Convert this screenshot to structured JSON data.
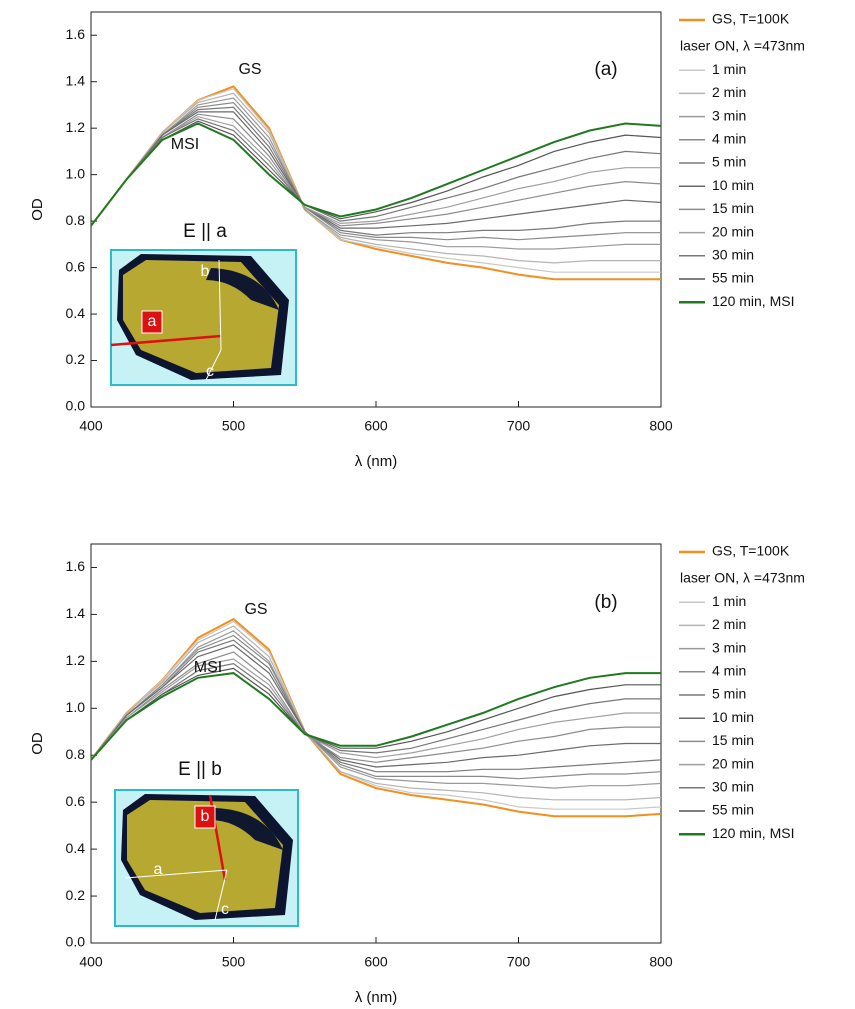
{
  "chart_data": [
    {
      "type": "line",
      "panel_label": "(a)",
      "xlabel": "λ (nm)",
      "ylabel": "OD",
      "legend_note": "laser ON, λ =473nm",
      "annotations": {
        "gs": "GS",
        "msi": "MSI"
      },
      "inset": {
        "title": "E || a",
        "labels": [
          "a",
          "b",
          "c"
        ]
      },
      "xlim": [
        400,
        800
      ],
      "ylim": [
        0,
        1.7
      ],
      "xticks": [
        400,
        500,
        600,
        700,
        800
      ],
      "yticks": [
        {
          "value": 0,
          "label": "0.0"
        },
        0.2,
        0.4,
        0.6,
        0.8,
        {
          "value": 1,
          "label": "1.0"
        },
        1.2,
        1.4,
        1.6
      ],
      "x": [
        400,
        425,
        450,
        475,
        500,
        525,
        550,
        575,
        600,
        625,
        650,
        675,
        700,
        725,
        750,
        775,
        800
      ],
      "series": [
        {
          "name": "GS, T=100K",
          "color": "#f0901e",
          "values": [
            0.78,
            0.98,
            1.18,
            1.32,
            1.38,
            1.2,
            0.85,
            0.72,
            0.68,
            0.65,
            0.62,
            0.6,
            0.57,
            0.55,
            0.55,
            0.55,
            0.55
          ]
        },
        {
          "name": "1 min",
          "color": "#c8c8c8",
          "values": [
            0.78,
            0.98,
            1.18,
            1.32,
            1.37,
            1.19,
            0.85,
            0.72,
            0.69,
            0.66,
            0.64,
            0.62,
            0.6,
            0.58,
            0.58,
            0.58,
            0.58
          ]
        },
        {
          "name": "2 min",
          "color": "#b4b4b4",
          "values": [
            0.78,
            0.98,
            1.18,
            1.31,
            1.35,
            1.18,
            0.85,
            0.73,
            0.7,
            0.68,
            0.66,
            0.65,
            0.63,
            0.62,
            0.63,
            0.63,
            0.63
          ]
        },
        {
          "name": "3 min",
          "color": "#9a9a9a",
          "values": [
            0.78,
            0.98,
            1.17,
            1.3,
            1.33,
            1.16,
            0.85,
            0.74,
            0.72,
            0.71,
            0.69,
            0.69,
            0.68,
            0.68,
            0.69,
            0.7,
            0.7
          ]
        },
        {
          "name": "4 min",
          "color": "#8a8a8a",
          "values": [
            0.78,
            0.98,
            1.17,
            1.29,
            1.31,
            1.14,
            0.86,
            0.75,
            0.73,
            0.73,
            0.72,
            0.73,
            0.72,
            0.73,
            0.74,
            0.75,
            0.75
          ]
        },
        {
          "name": "5 min",
          "color": "#7a7a7a",
          "values": [
            0.78,
            0.98,
            1.17,
            1.28,
            1.29,
            1.12,
            0.86,
            0.76,
            0.74,
            0.75,
            0.75,
            0.76,
            0.76,
            0.77,
            0.79,
            0.8,
            0.8
          ]
        },
        {
          "name": "10 min",
          "color": "#6a6a6a",
          "values": [
            0.78,
            0.98,
            1.17,
            1.27,
            1.27,
            1.1,
            0.86,
            0.77,
            0.77,
            0.78,
            0.79,
            0.81,
            0.83,
            0.85,
            0.87,
            0.89,
            0.88
          ]
        },
        {
          "name": "15 min",
          "color": "#8c8c8c",
          "values": [
            0.78,
            0.98,
            1.16,
            1.26,
            1.24,
            1.08,
            0.86,
            0.78,
            0.79,
            0.81,
            0.83,
            0.86,
            0.89,
            0.92,
            0.95,
            0.97,
            0.96
          ]
        },
        {
          "name": "20 min",
          "color": "#a0a0a0",
          "values": [
            0.78,
            0.98,
            1.16,
            1.25,
            1.21,
            1.06,
            0.86,
            0.79,
            0.8,
            0.83,
            0.86,
            0.9,
            0.94,
            0.97,
            1.01,
            1.03,
            1.03
          ]
        },
        {
          "name": "30 min",
          "color": "#777777",
          "values": [
            0.78,
            0.98,
            1.16,
            1.24,
            1.19,
            1.04,
            0.87,
            0.8,
            0.82,
            0.86,
            0.9,
            0.94,
            0.99,
            1.03,
            1.07,
            1.1,
            1.09
          ]
        },
        {
          "name": "55 min",
          "color": "#555555",
          "values": [
            0.78,
            0.98,
            1.15,
            1.23,
            1.17,
            1.02,
            0.87,
            0.81,
            0.84,
            0.88,
            0.93,
            0.99,
            1.04,
            1.1,
            1.14,
            1.17,
            1.16
          ]
        },
        {
          "name": "120 min, MSI",
          "color": "#1f7a1f",
          "values": [
            0.78,
            0.98,
            1.15,
            1.22,
            1.15,
            1.0,
            0.87,
            0.82,
            0.85,
            0.9,
            0.96,
            1.02,
            1.08,
            1.14,
            1.19,
            1.22,
            1.21
          ]
        }
      ]
    },
    {
      "type": "line",
      "panel_label": "(b)",
      "xlabel": "λ (nm)",
      "ylabel": "OD",
      "legend_note": "laser ON, λ =473nm",
      "annotations": {
        "gs": "GS",
        "msi": "MSI"
      },
      "inset": {
        "title": "E || b",
        "labels": [
          "a",
          "b",
          "c"
        ]
      },
      "xlim": [
        400,
        800
      ],
      "ylim": [
        0,
        1.7
      ],
      "xticks": [
        400,
        500,
        600,
        700,
        800
      ],
      "yticks": [
        {
          "value": 0,
          "label": "0.0"
        },
        0.2,
        0.4,
        0.6,
        0.8,
        {
          "value": 1,
          "label": "1.0"
        },
        1.2,
        1.4,
        1.6
      ],
      "x": [
        400,
        425,
        450,
        475,
        500,
        525,
        550,
        575,
        600,
        625,
        650,
        675,
        700,
        725,
        750,
        775,
        800
      ],
      "series": [
        {
          "name": "GS, T=100K",
          "color": "#f0901e",
          "values": [
            0.78,
            0.98,
            1.12,
            1.3,
            1.38,
            1.25,
            0.9,
            0.72,
            0.66,
            0.63,
            0.61,
            0.59,
            0.56,
            0.54,
            0.54,
            0.54,
            0.55
          ]
        },
        {
          "name": "1 min",
          "color": "#c8c8c8",
          "values": [
            0.78,
            0.98,
            1.12,
            1.29,
            1.37,
            1.24,
            0.9,
            0.73,
            0.67,
            0.64,
            0.63,
            0.61,
            0.58,
            0.57,
            0.57,
            0.57,
            0.58
          ]
        },
        {
          "name": "2 min",
          "color": "#b4b4b4",
          "values": [
            0.78,
            0.98,
            1.11,
            1.28,
            1.35,
            1.22,
            0.9,
            0.73,
            0.68,
            0.66,
            0.65,
            0.64,
            0.62,
            0.61,
            0.61,
            0.61,
            0.62
          ]
        },
        {
          "name": "3 min",
          "color": "#9a9a9a",
          "values": [
            0.78,
            0.97,
            1.1,
            1.26,
            1.33,
            1.2,
            0.9,
            0.75,
            0.7,
            0.69,
            0.68,
            0.68,
            0.67,
            0.66,
            0.67,
            0.67,
            0.68
          ]
        },
        {
          "name": "4 min",
          "color": "#8a8a8a",
          "values": [
            0.78,
            0.97,
            1.1,
            1.25,
            1.31,
            1.19,
            0.9,
            0.76,
            0.71,
            0.71,
            0.71,
            0.71,
            0.7,
            0.71,
            0.72,
            0.72,
            0.73
          ]
        },
        {
          "name": "5 min",
          "color": "#7a7a7a",
          "values": [
            0.78,
            0.97,
            1.09,
            1.24,
            1.29,
            1.17,
            0.9,
            0.77,
            0.73,
            0.73,
            0.73,
            0.74,
            0.74,
            0.75,
            0.76,
            0.77,
            0.78
          ]
        },
        {
          "name": "10 min",
          "color": "#6a6a6a",
          "values": [
            0.78,
            0.97,
            1.09,
            1.22,
            1.27,
            1.15,
            0.9,
            0.78,
            0.75,
            0.76,
            0.77,
            0.79,
            0.8,
            0.82,
            0.84,
            0.85,
            0.85
          ]
        },
        {
          "name": "15 min",
          "color": "#8c8c8c",
          "values": [
            0.78,
            0.96,
            1.08,
            1.19,
            1.24,
            1.12,
            0.89,
            0.79,
            0.77,
            0.79,
            0.81,
            0.83,
            0.86,
            0.88,
            0.91,
            0.92,
            0.92
          ]
        },
        {
          "name": "20 min",
          "color": "#a0a0a0",
          "values": [
            0.78,
            0.96,
            1.07,
            1.18,
            1.21,
            1.1,
            0.89,
            0.81,
            0.79,
            0.81,
            0.84,
            0.87,
            0.91,
            0.94,
            0.96,
            0.98,
            0.98
          ]
        },
        {
          "name": "30 min",
          "color": "#777777",
          "values": [
            0.78,
            0.95,
            1.06,
            1.16,
            1.19,
            1.08,
            0.89,
            0.82,
            0.81,
            0.83,
            0.87,
            0.91,
            0.95,
            0.99,
            1.02,
            1.04,
            1.04
          ]
        },
        {
          "name": "55 min",
          "color": "#555555",
          "values": [
            0.78,
            0.95,
            1.06,
            1.14,
            1.17,
            1.06,
            0.89,
            0.83,
            0.83,
            0.86,
            0.9,
            0.95,
            1.0,
            1.05,
            1.08,
            1.1,
            1.1
          ]
        },
        {
          "name": "120 min, MSI",
          "color": "#1f7a1f",
          "values": [
            0.78,
            0.95,
            1.05,
            1.13,
            1.15,
            1.04,
            0.89,
            0.84,
            0.84,
            0.88,
            0.93,
            0.98,
            1.04,
            1.09,
            1.13,
            1.15,
            1.15
          ]
        }
      ]
    }
  ]
}
